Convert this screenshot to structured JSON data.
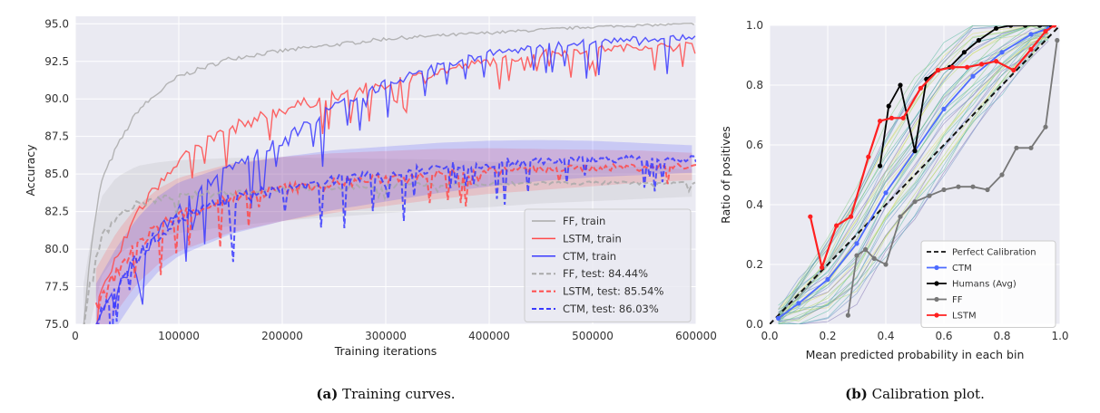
{
  "chart_data": [
    {
      "type": "line",
      "caption_label": "(a)",
      "caption_text": "Training curves.",
      "xlabel": "Training iterations",
      "ylabel": "Accuracy",
      "xlim": [
        0,
        600000
      ],
      "ylim": [
        75.0,
        95.5
      ],
      "x_ticks": [
        0,
        100000,
        200000,
        300000,
        400000,
        500000,
        600000
      ],
      "y_ticks": [
        75.0,
        77.5,
        80.0,
        82.5,
        85.0,
        87.5,
        90.0,
        92.5,
        95.0
      ],
      "grid": true,
      "legend_position": "lower-right",
      "series": [
        {
          "name": "FF, train",
          "color": "#a9a9a9",
          "style": "solid",
          "x": [
            8000,
            15000,
            25000,
            40000,
            60000,
            80000,
            100000,
            150000,
            200000,
            250000,
            300000,
            350000,
            400000,
            450000,
            500000,
            550000,
            600000
          ],
          "values": [
            75.0,
            80.0,
            84.5,
            86.8,
            89.2,
            90.4,
            91.5,
            92.7,
            93.2,
            93.6,
            94.0,
            94.2,
            94.4,
            94.6,
            94.8,
            94.9,
            95.0
          ]
        },
        {
          "name": "LSTM, train",
          "color": "#ff4a4a",
          "style": "solid",
          "x": [
            20000,
            40000,
            60000,
            80000,
            100000,
            130000,
            160000,
            200000,
            250000,
            300000,
            350000,
            400000,
            450000,
            500000,
            550000,
            600000
          ],
          "values": [
            76.0,
            79.5,
            82.5,
            84.5,
            86.0,
            87.3,
            88.3,
            89.3,
            90.2,
            91.0,
            91.8,
            92.5,
            93.0,
            93.3,
            93.5,
            93.6
          ]
        },
        {
          "name": "CTM, train",
          "color": "#3a3aff",
          "style": "solid",
          "x": [
            20000,
            40000,
            60000,
            80000,
            100000,
            130000,
            160000,
            200000,
            250000,
            300000,
            350000,
            400000,
            450000,
            500000,
            550000,
            600000
          ],
          "values": [
            75.0,
            77.5,
            79.5,
            81.0,
            82.8,
            84.5,
            85.8,
            87.2,
            89.5,
            91.0,
            92.2,
            93.0,
            93.5,
            93.8,
            94.0,
            94.1
          ]
        },
        {
          "name": "FF, test: 84.44%",
          "color": "#a9a9a9",
          "style": "dashed",
          "x": [
            8000,
            15000,
            25000,
            40000,
            60000,
            80000,
            100000,
            150000,
            200000,
            250000,
            300000,
            350000,
            400000,
            450000,
            500000,
            550000,
            600000
          ],
          "values": [
            75.0,
            78.0,
            80.8,
            82.2,
            83.0,
            83.3,
            83.5,
            83.8,
            84.0,
            84.1,
            84.2,
            84.3,
            84.3,
            84.4,
            84.4,
            84.4,
            84.4
          ]
        },
        {
          "name": "LSTM, test: 85.54%",
          "color": "#ff4a4a",
          "style": "dashed",
          "x": [
            20000,
            40000,
            60000,
            80000,
            100000,
            150000,
            200000,
            250000,
            300000,
            350000,
            400000,
            450000,
            500000,
            550000,
            600000
          ],
          "values": [
            76.0,
            78.5,
            80.3,
            81.5,
            82.3,
            83.4,
            84.0,
            84.4,
            84.7,
            85.0,
            85.2,
            85.3,
            85.4,
            85.5,
            85.5
          ]
        },
        {
          "name": "CTM, test: 86.03%",
          "color": "#3a3aff",
          "style": "dashed",
          "x": [
            20000,
            40000,
            60000,
            80000,
            100000,
            150000,
            200000,
            250000,
            300000,
            350000,
            400000,
            450000,
            500000,
            550000,
            600000
          ],
          "values": [
            75.0,
            77.5,
            79.5,
            81.0,
            82.0,
            83.3,
            84.0,
            84.6,
            85.0,
            85.4,
            85.7,
            85.9,
            86.0,
            86.0,
            86.0
          ]
        }
      ]
    },
    {
      "type": "line",
      "caption_label": "(b)",
      "caption_text": "Calibration plot.",
      "xlabel": "Mean predicted probability in each bin",
      "ylabel": "Ratio of positives",
      "xlim": [
        0.0,
        1.0
      ],
      "ylim": [
        0.0,
        1.0
      ],
      "x_ticks": [
        0.0,
        0.2,
        0.4,
        0.6,
        0.8,
        1.0
      ],
      "y_ticks": [
        0.0,
        0.2,
        0.4,
        0.6,
        0.8,
        1.0
      ],
      "grid": true,
      "legend_position": "lower-right",
      "series": [
        {
          "name": "Perfect Calibration",
          "color": "#111111",
          "style": "dashed",
          "marker": false,
          "x": [
            0.0,
            1.0
          ],
          "values": [
            0.0,
            1.0
          ]
        },
        {
          "name": "CTM",
          "color": "#4d6bff",
          "style": "solid",
          "marker": true,
          "x": [
            0.03,
            0.1,
            0.2,
            0.3,
            0.4,
            0.5,
            0.6,
            0.7,
            0.8,
            0.9,
            0.96
          ],
          "values": [
            0.02,
            0.07,
            0.15,
            0.27,
            0.44,
            0.58,
            0.72,
            0.83,
            0.91,
            0.97,
            0.99
          ]
        },
        {
          "name": "Humans (Avg)",
          "color": "#000000",
          "style": "solid",
          "marker": true,
          "x": [
            0.38,
            0.41,
            0.45,
            0.5,
            0.54,
            0.58,
            0.62,
            0.67,
            0.72,
            0.78,
            0.83,
            0.88,
            0.93,
            0.97
          ],
          "values": [
            0.53,
            0.73,
            0.8,
            0.58,
            0.82,
            0.85,
            0.86,
            0.91,
            0.95,
            0.99,
            1.0,
            1.0,
            1.0,
            1.0
          ]
        },
        {
          "name": "FF",
          "color": "#777777",
          "style": "solid",
          "marker": true,
          "x": [
            0.27,
            0.3,
            0.33,
            0.36,
            0.4,
            0.45,
            0.5,
            0.55,
            0.6,
            0.65,
            0.7,
            0.75,
            0.8,
            0.85,
            0.9,
            0.95,
            0.99
          ],
          "values": [
            0.03,
            0.23,
            0.25,
            0.22,
            0.2,
            0.36,
            0.41,
            0.43,
            0.45,
            0.46,
            0.46,
            0.45,
            0.5,
            0.59,
            0.59,
            0.66,
            0.95
          ]
        },
        {
          "name": "LSTM",
          "color": "#ff2020",
          "style": "solid",
          "marker": true,
          "x": [
            0.14,
            0.18,
            0.23,
            0.28,
            0.34,
            0.38,
            0.42,
            0.46,
            0.52,
            0.58,
            0.63,
            0.68,
            0.73,
            0.78,
            0.84,
            0.9,
            0.95,
            0.98
          ],
          "values": [
            0.36,
            0.19,
            0.33,
            0.36,
            0.56,
            0.68,
            0.69,
            0.69,
            0.79,
            0.85,
            0.86,
            0.86,
            0.87,
            0.88,
            0.85,
            0.92,
            0.98,
            1.0
          ]
        }
      ]
    }
  ]
}
